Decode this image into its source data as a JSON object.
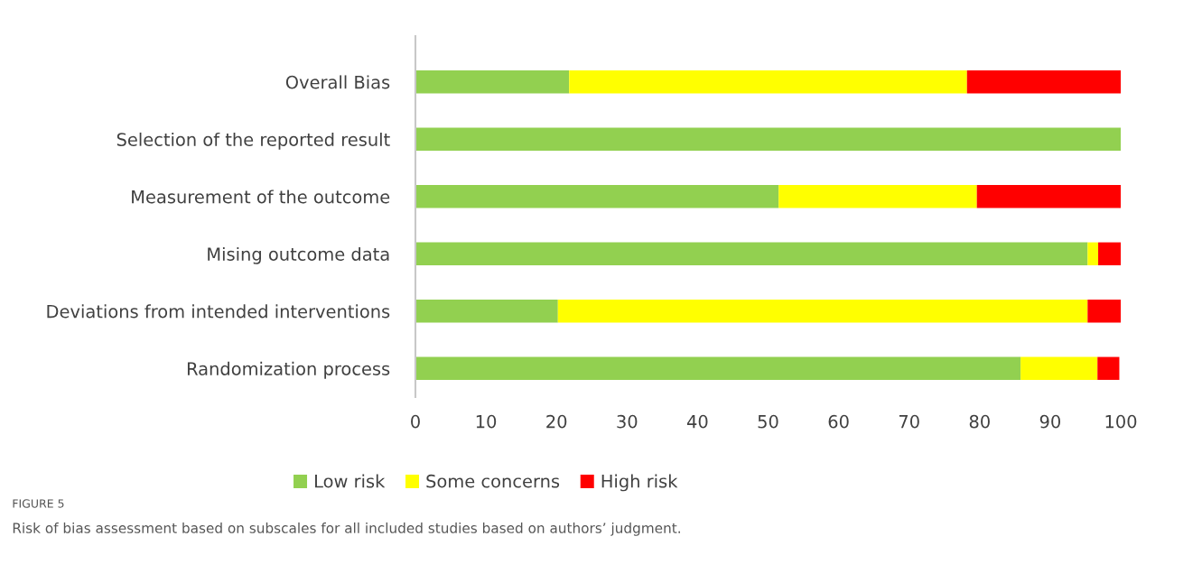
{
  "chart_data": {
    "type": "bar",
    "orientation": "horizontal",
    "stacked": true,
    "title": "FIGURE 5",
    "subtitle": "Risk of bias assessment based on subscales for all included studies based on authors’ judgment.",
    "categories": [
      "Overall Bias",
      "Selection of the reported result",
      "Measurement of the outcome",
      "Mising outcome data",
      "Deviations from intended interventions",
      "Randomization process"
    ],
    "series": [
      {
        "name": "Low risk",
        "color": "#92d050",
        "values": [
          21.8,
          100,
          51.5,
          95.3,
          20.2,
          85.8
        ]
      },
      {
        "name": "Some concerns",
        "color": "#ffff00",
        "values": [
          56.4,
          0,
          28.1,
          1.5,
          75.1,
          10.9
        ]
      },
      {
        "name": "High risk",
        "color": "#ff0000",
        "values": [
          21.8,
          0,
          20.4,
          3.2,
          4.7,
          3.1
        ]
      }
    ],
    "xlim": [
      0,
      100
    ],
    "xticks": [
      0,
      10,
      20,
      30,
      40,
      50,
      60,
      70,
      80,
      90,
      100
    ],
    "grid": false,
    "legend": "bottom"
  }
}
